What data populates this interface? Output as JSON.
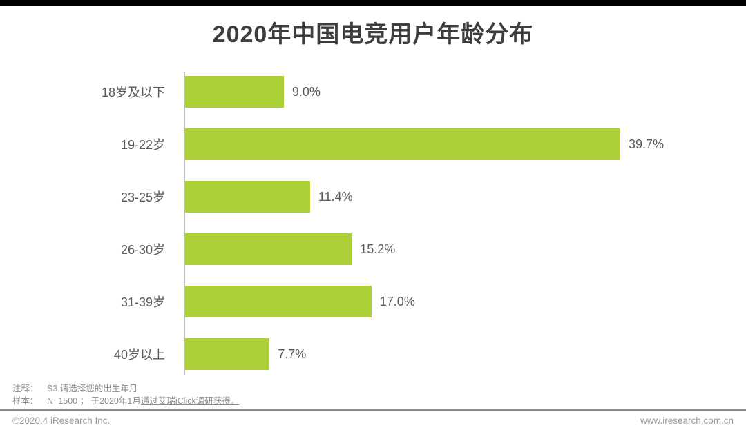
{
  "page": {
    "top_bar_color": "#000000",
    "background": "#ffffff"
  },
  "title": "2020年中国电竞用户年龄分布",
  "chart_data": {
    "type": "bar",
    "orientation": "horizontal",
    "title": "2020年中国电竞用户年龄分布",
    "categories": [
      "18岁及以下",
      "19-22岁",
      "23-25岁",
      "26-30岁",
      "31-39岁",
      "40岁以上"
    ],
    "values": [
      9.0,
      39.7,
      11.4,
      15.2,
      17.0,
      7.7
    ],
    "value_labels": [
      "9.0%",
      "39.7%",
      "11.4%",
      "15.2%",
      "17.0%",
      "7.7%"
    ],
    "unit": "%",
    "bar_color": "#acd038",
    "axis_color": "#bdbdbd",
    "xlim": [
      0,
      42
    ],
    "grid": false,
    "legend": "none",
    "value_label_position": "right-of-bar"
  },
  "notes": {
    "note1_label": "注释：",
    "note1_text": "S3.请选择您的出生年月",
    "note2_label": "样本：",
    "note2_text": "N=1500 ；  于2020年1月",
    "note2_underlined": "通过艾瑞iClick调研获得。"
  },
  "footer": {
    "copyright": "©2020.4 iResearch Inc.",
    "website": "www.iresearch.com.cn"
  }
}
